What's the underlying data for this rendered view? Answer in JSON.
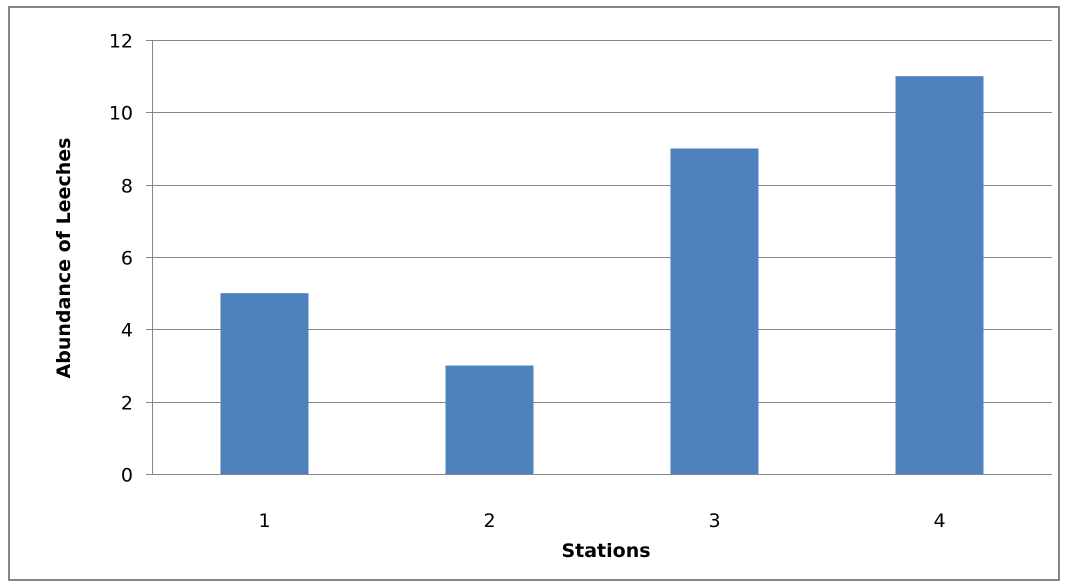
{
  "chart_data": {
    "type": "bar",
    "categories": [
      "1",
      "2",
      "3",
      "4"
    ],
    "values": [
      5,
      3,
      9,
      11
    ],
    "title": "",
    "xlabel": "Stations",
    "ylabel": "Abundance of Leeches",
    "ylim": [
      0,
      12
    ],
    "yticks": [
      0,
      2,
      4,
      6,
      8,
      10,
      12
    ],
    "grid": "horizontal",
    "legend": "none",
    "bar_color": "#4F81BD",
    "gridline_color": "#868686"
  }
}
